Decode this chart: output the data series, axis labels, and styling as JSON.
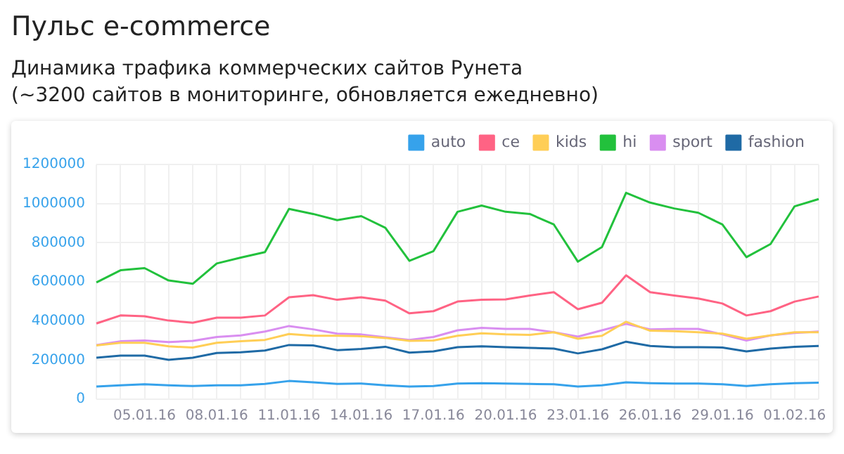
{
  "chart_data": {
    "type": "line",
    "title": "Пульс e-commerce",
    "subtitle": "Динамика трафика коммерческих сайтов Рунета\n(~3200 сайтов в мониторинге, обновляется ежедневно)",
    "categories": [
      null,
      null,
      "05.01.16",
      null,
      null,
      "08.01.16",
      null,
      null,
      "11.01.16",
      null,
      null,
      "14.01.16",
      null,
      null,
      "17.01.16",
      null,
      null,
      "20.01.16",
      null,
      null,
      "23.01.16",
      null,
      null,
      "26.01.16",
      null,
      null,
      "29.01.16",
      null,
      null,
      "01.02.16",
      null
    ],
    "series": [
      {
        "name": "auto",
        "color": "#36a2eb",
        "values": [
          65000,
          71000,
          76000,
          71000,
          67000,
          71000,
          71000,
          78000,
          93000,
          86000,
          78000,
          80000,
          71000,
          65000,
          67000,
          80000,
          82000,
          80000,
          78000,
          76000,
          65000,
          71000,
          86000,
          82000,
          80000,
          80000,
          76000,
          67000,
          76000,
          82000,
          84000
        ]
      },
      {
        "name": "ce",
        "color": "#ff6384",
        "values": [
          387000,
          428000,
          424000,
          402000,
          391000,
          417000,
          417000,
          428000,
          521000,
          532000,
          508000,
          521000,
          504000,
          439000,
          450000,
          499000,
          508000,
          510000,
          530000,
          547000,
          460000,
          493000,
          633000,
          547000,
          530000,
          515000,
          489000,
          428000,
          450000,
          499000,
          525000
        ]
      },
      {
        "name": "kids",
        "color": "#ffce56",
        "values": [
          275000,
          288000,
          288000,
          270000,
          264000,
          288000,
          296000,
          303000,
          333000,
          324000,
          324000,
          322000,
          313000,
          298000,
          300000,
          324000,
          337000,
          331000,
          329000,
          342000,
          309000,
          324000,
          396000,
          350000,
          348000,
          342000,
          335000,
          309000,
          326000,
          342000,
          342000
        ]
      },
      {
        "name": "hi",
        "color": "#22c13c",
        "values": [
          597000,
          659000,
          670000,
          607000,
          590000,
          694000,
          724000,
          752000,
          973000,
          947000,
          915000,
          936000,
          876000,
          707000,
          757000,
          958000,
          990000,
          958000,
          947000,
          893000,
          703000,
          778000,
          1055000,
          1005000,
          975000,
          953000,
          893000,
          726000,
          793000,
          986000,
          1023000
        ]
      },
      {
        "name": "sport",
        "color": "#d98ef0",
        "values": [
          277000,
          296000,
          300000,
          292000,
          298000,
          318000,
          326000,
          346000,
          374000,
          357000,
          335000,
          331000,
          316000,
          303000,
          318000,
          352000,
          365000,
          359000,
          359000,
          342000,
          320000,
          352000,
          385000,
          357000,
          359000,
          359000,
          331000,
          300000,
          326000,
          339000,
          346000
        ]
      },
      {
        "name": "fashion",
        "color": "#1f6aa5",
        "values": [
          212000,
          223000,
          223000,
          201000,
          212000,
          236000,
          240000,
          249000,
          277000,
          275000,
          251000,
          257000,
          268000,
          238000,
          244000,
          266000,
          270000,
          266000,
          262000,
          259000,
          234000,
          255000,
          294000,
          272000,
          266000,
          266000,
          264000,
          244000,
          259000,
          268000,
          272000
        ]
      }
    ],
    "ylim": [
      0,
      1200000
    ],
    "yticks": [
      0,
      200000,
      400000,
      600000,
      800000,
      1000000,
      1200000
    ],
    "grid": true,
    "legend": "top right",
    "marker": "none",
    "line_style": "solid"
  }
}
